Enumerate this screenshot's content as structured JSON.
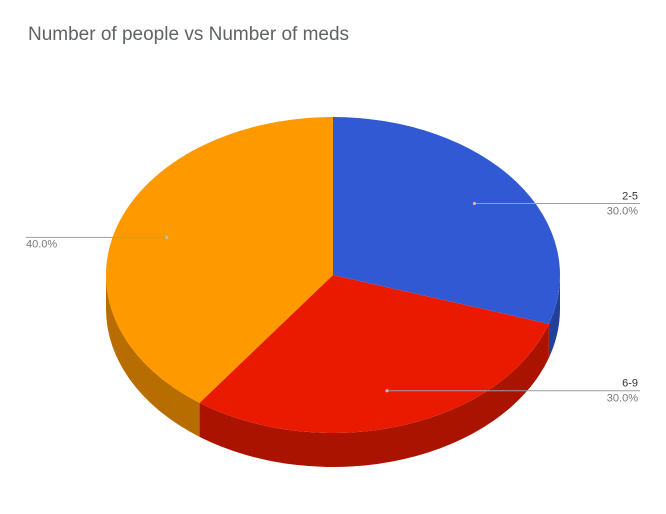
{
  "chart_data": {
    "type": "pie",
    "title": "Number of people vs Number of meds",
    "three_d": true,
    "slices": [
      {
        "label": "2-5",
        "value": 30.0,
        "percent_label": "30.0%",
        "color": "#3159d3"
      },
      {
        "label": "6-9",
        "value": 30.0,
        "percent_label": "30.0%",
        "color": "#ea1a00"
      },
      {
        "label": "",
        "value": 40.0,
        "percent_label": "40.0%",
        "color": "#ff9900"
      }
    ],
    "side_colors": [
      "#22409a",
      "#a91300",
      "#b86d00"
    ],
    "legend": "none"
  }
}
